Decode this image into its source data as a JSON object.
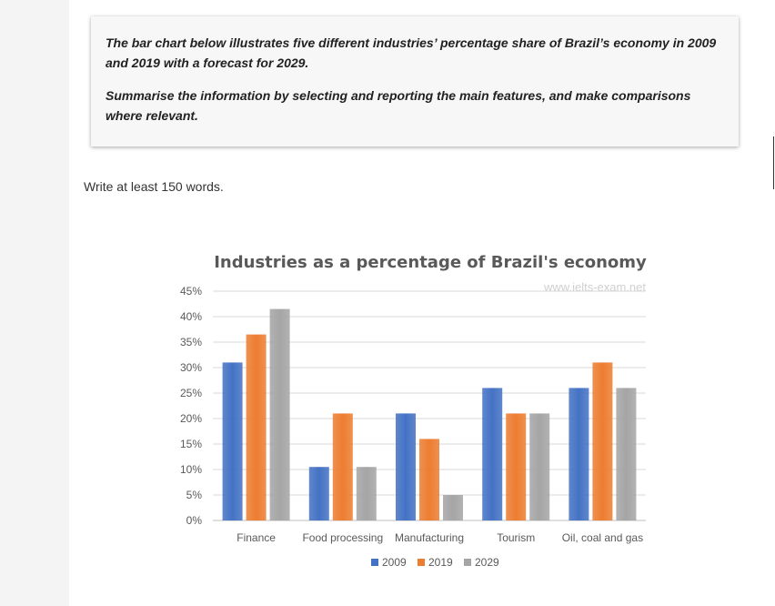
{
  "task": {
    "paragraph1": "The bar chart below illustrates five different industries’ percentage share of Brazil’s economy in 2009 and 2019 with a forecast for 2029.",
    "paragraph2": "Summarise the information by selecting and reporting the main features, and make comparisons where relevant."
  },
  "instruction": "Write at least 150 words.",
  "chart_data": {
    "type": "bar",
    "title": "Industries as a percentage of Brazil's economy",
    "watermark": "www.ielts-exam.net",
    "categories": [
      "Finance",
      "Food processing",
      "Manufacturing",
      "Tourism",
      "Oil, coal and gas"
    ],
    "series": [
      {
        "name": "2009",
        "color": "#4472c4",
        "values": [
          31,
          10.5,
          21,
          26,
          26
        ]
      },
      {
        "name": "2019",
        "color": "#ed7d31",
        "values": [
          36.5,
          21,
          16,
          21,
          31
        ]
      },
      {
        "name": "2029",
        "color": "#a5a5a5",
        "values": [
          41.5,
          10.5,
          5,
          21,
          26
        ]
      }
    ],
    "yticks": [
      "0%",
      "5%",
      "10%",
      "15%",
      "20%",
      "25%",
      "30%",
      "35%",
      "40%",
      "45%"
    ],
    "ylim": [
      0,
      45
    ],
    "grid": true,
    "legend_position": "bottom"
  }
}
